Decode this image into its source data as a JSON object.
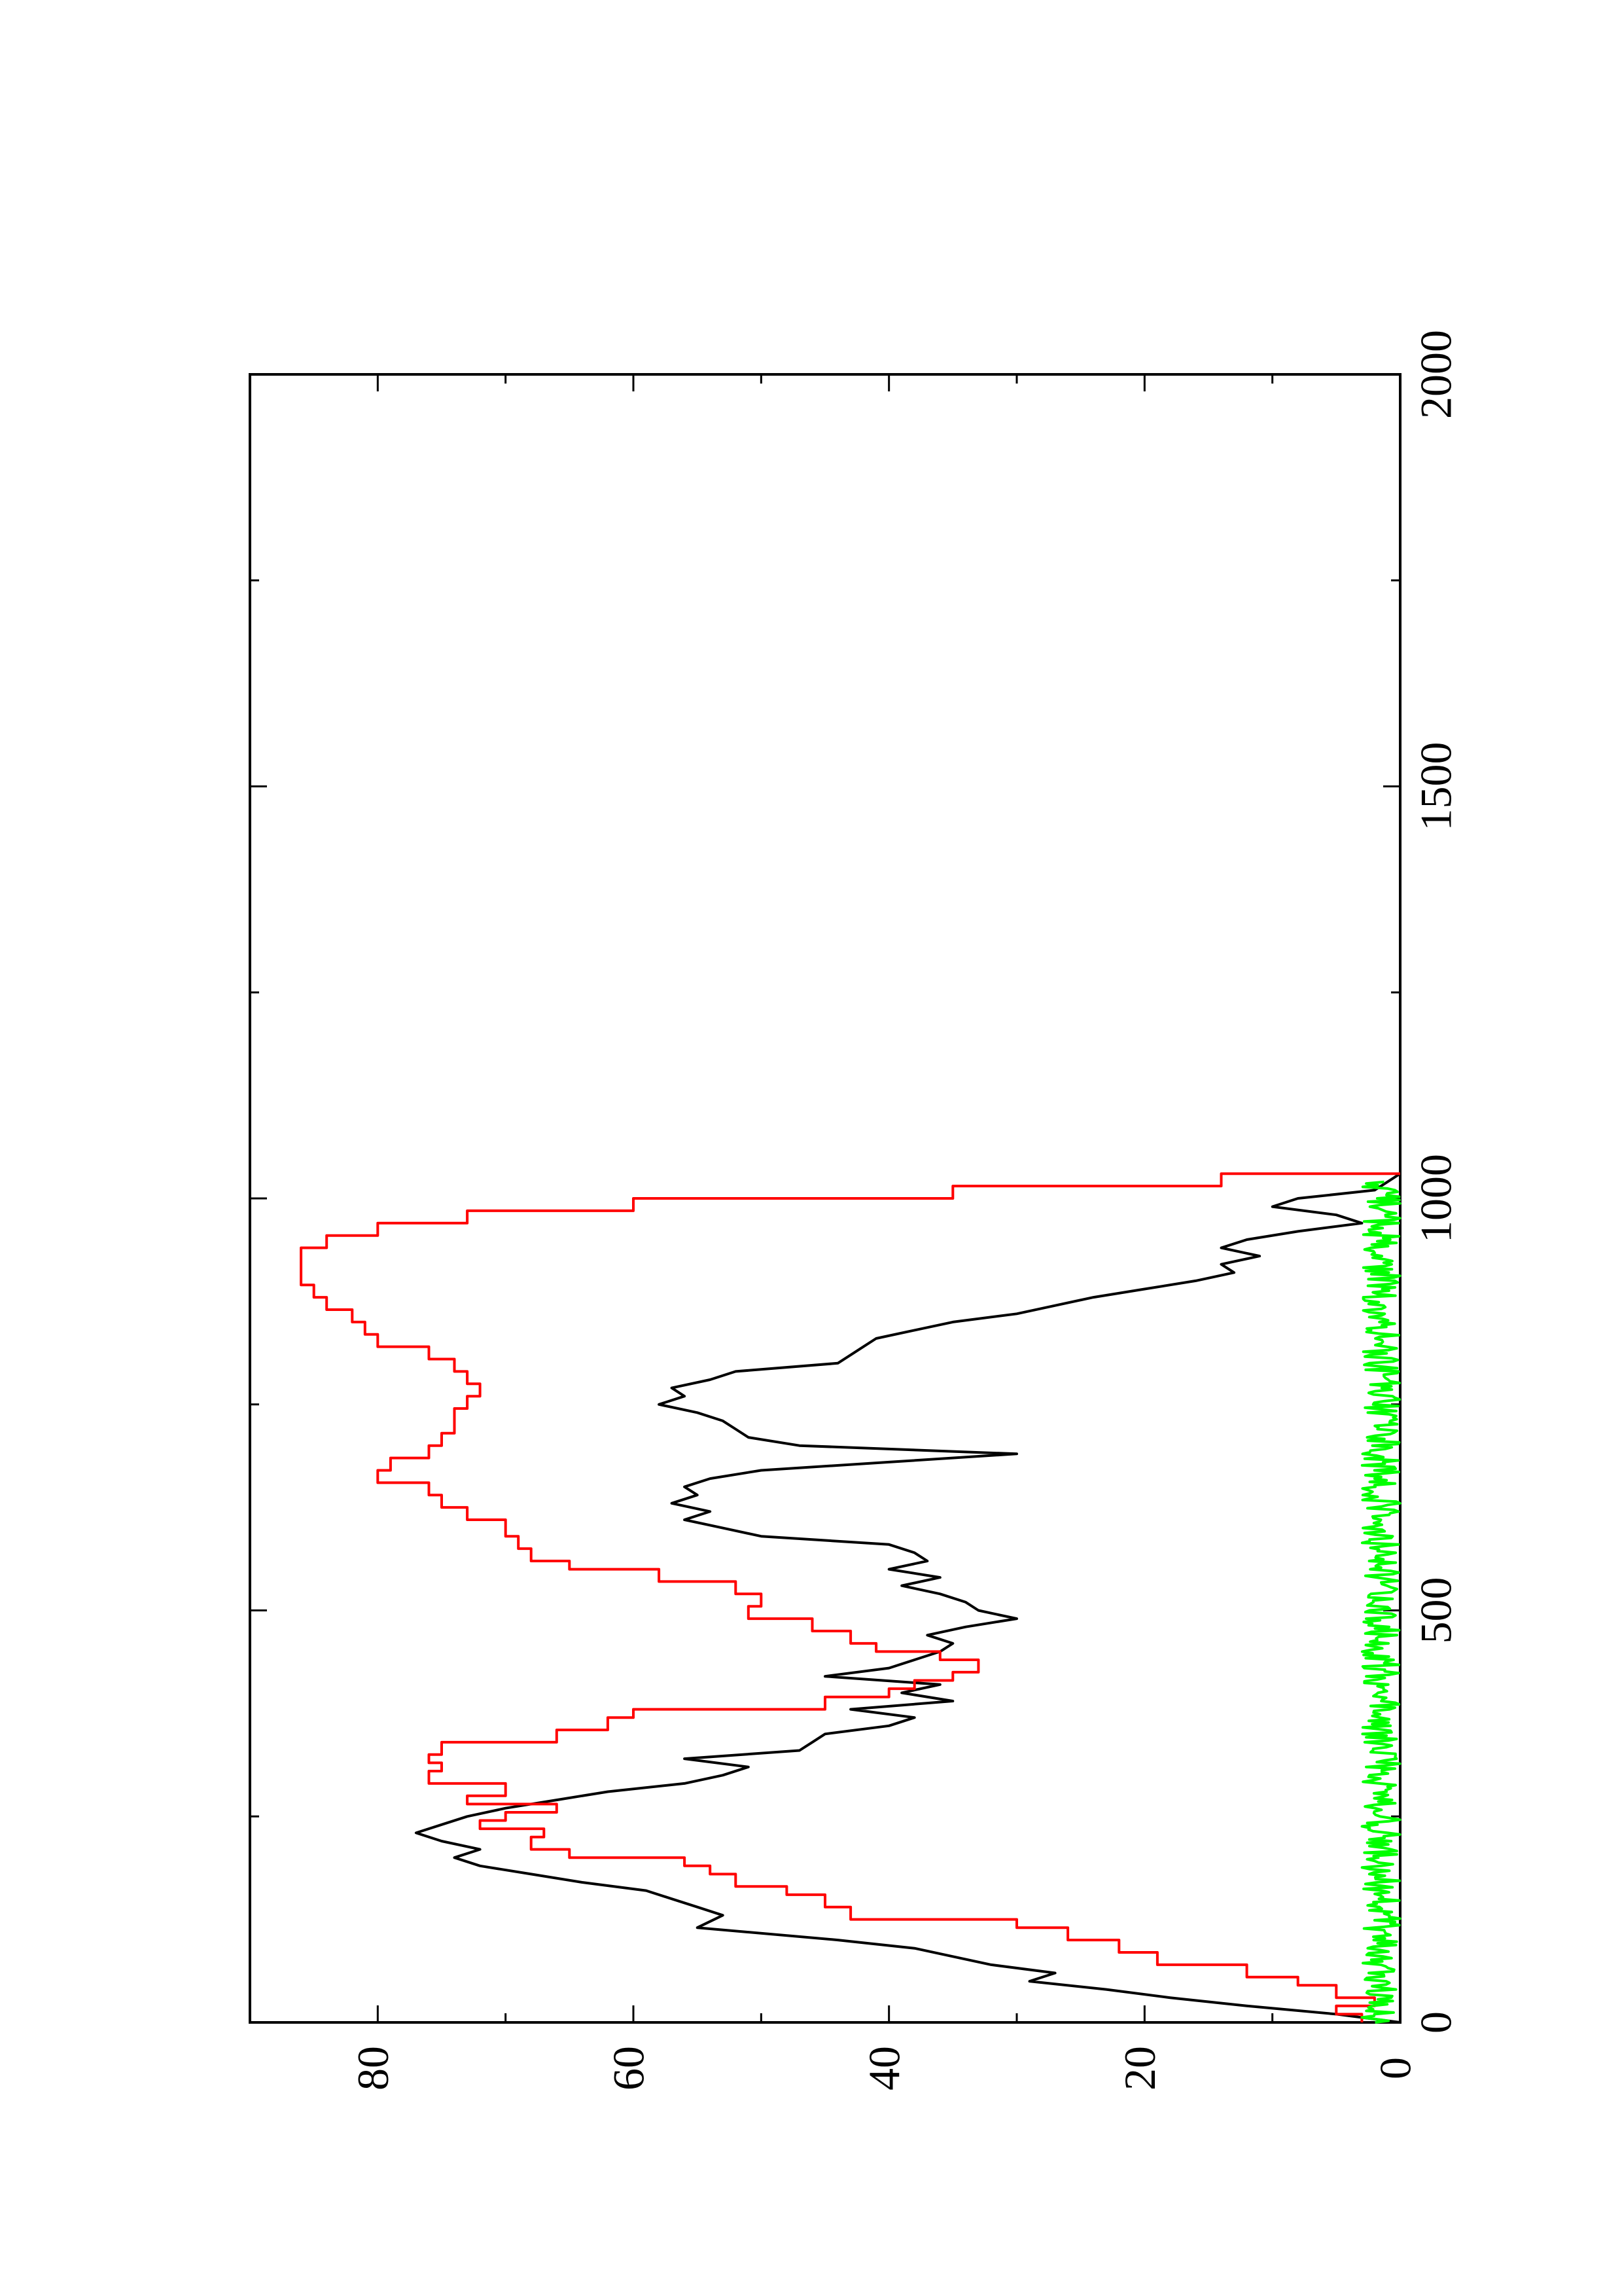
{
  "chart_data": {
    "type": "line",
    "orientation": "rotated-90-counterclockwise",
    "title": "",
    "xlabel": "",
    "ylabel": "",
    "xlim": [
      0,
      2000
    ],
    "ylim": [
      0,
      90
    ],
    "x_ticks": [
      0,
      500,
      1000,
      1500,
      2000
    ],
    "x_tick_labels": [
      "0",
      "500",
      "1000",
      "1500",
      "2000"
    ],
    "x_minor_ticks": [
      250,
      750,
      1250,
      1750
    ],
    "y_ticks": [
      0,
      20,
      40,
      60,
      80
    ],
    "y_tick_labels": [
      "0",
      "20",
      "40",
      "60",
      "80"
    ],
    "y_minor_ticks": [
      10,
      30,
      50,
      70
    ],
    "grid": false,
    "legend": "none",
    "colors": {
      "frame": "#000000",
      "black_series": "#000000",
      "red_series": "#ff0000",
      "green_series": "#00ff00"
    },
    "series": [
      {
        "color": "#000000",
        "style": "jagged",
        "x": [
          0,
          10,
          20,
          30,
          40,
          50,
          60,
          70,
          80,
          90,
          100,
          115,
          130,
          140,
          150,
          160,
          170,
          180,
          190,
          200,
          210,
          220,
          230,
          240,
          250,
          260,
          270,
          280,
          290,
          300,
          310,
          320,
          330,
          340,
          350,
          360,
          370,
          380,
          390,
          400,
          410,
          420,
          430,
          440,
          450,
          460,
          470,
          480,
          490,
          500,
          510,
          520,
          530,
          540,
          550,
          560,
          570,
          580,
          590,
          600,
          610,
          620,
          630,
          640,
          650,
          660,
          670,
          680,
          690,
          700,
          710,
          720,
          730,
          740,
          750,
          760,
          770,
          780,
          790,
          800,
          810,
          820,
          830,
          840,
          850,
          860,
          870,
          880,
          890,
          900,
          910,
          920,
          930,
          940,
          950,
          960,
          970,
          980,
          990,
          1000,
          1010,
          1020,
          1030
        ],
        "y": [
          0,
          5,
          12,
          18,
          23,
          29,
          27,
          32,
          35,
          38,
          44,
          55,
          53,
          55,
          57,
          59,
          64,
          68,
          72,
          74,
          72,
          75,
          77,
          75,
          73,
          70,
          66,
          62,
          56,
          53,
          51,
          56,
          47,
          46,
          45,
          40,
          38,
          43,
          35,
          39,
          36,
          45,
          40,
          38,
          36,
          35,
          37,
          34,
          30,
          33,
          34,
          36,
          39,
          36,
          40,
          37,
          38,
          40,
          50,
          53,
          56,
          54,
          57,
          55,
          56,
          54,
          50,
          40,
          30,
          47,
          51,
          52,
          53,
          55,
          58,
          56,
          57,
          54,
          52,
          44,
          43,
          42,
          41,
          38,
          35,
          30,
          27,
          24,
          20,
          16,
          13,
          14,
          11,
          14,
          12,
          8,
          3,
          5,
          10,
          8,
          2,
          1,
          0
        ]
      },
      {
        "color": "#ff0000",
        "style": "stepped",
        "x": [
          0,
          10,
          20,
          30,
          45,
          55,
          70,
          85,
          100,
          115,
          125,
          140,
          155,
          165,
          180,
          190,
          200,
          210,
          225,
          235,
          245,
          255,
          265,
          275,
          290,
          305,
          315,
          325,
          340,
          355,
          370,
          380,
          395,
          405,
          415,
          425,
          440,
          450,
          460,
          475,
          490,
          505,
          520,
          535,
          550,
          560,
          575,
          590,
          610,
          625,
          640,
          655,
          670,
          685,
          700,
          715,
          730,
          745,
          760,
          775,
          790,
          805,
          820,
          835,
          850,
          865,
          880,
          895,
          910,
          925,
          940,
          955,
          970,
          985,
          1000,
          1015,
          1030
        ],
        "y": [
          3,
          5,
          2,
          5,
          8,
          12,
          19,
          22,
          26,
          30,
          43,
          45,
          48,
          52,
          54,
          56,
          65,
          68,
          67,
          72,
          70,
          66,
          73,
          70,
          76,
          75,
          76,
          75,
          66,
          62,
          60,
          45,
          40,
          38,
          35,
          33,
          36,
          41,
          43,
          46,
          51,
          50,
          52,
          58,
          65,
          68,
          69,
          70,
          73,
          75,
          76,
          80,
          79,
          76,
          75,
          74,
          74,
          73,
          72,
          73,
          74,
          76,
          80,
          81,
          82,
          84,
          85,
          86,
          86,
          86,
          84,
          80,
          73,
          60,
          35,
          14,
          0
        ]
      },
      {
        "color": "#00ff00",
        "style": "noisy-baseline",
        "x_range": [
          0,
          1020
        ],
        "y_mean": 1.5,
        "y_amplitude": 1.5
      }
    ]
  }
}
